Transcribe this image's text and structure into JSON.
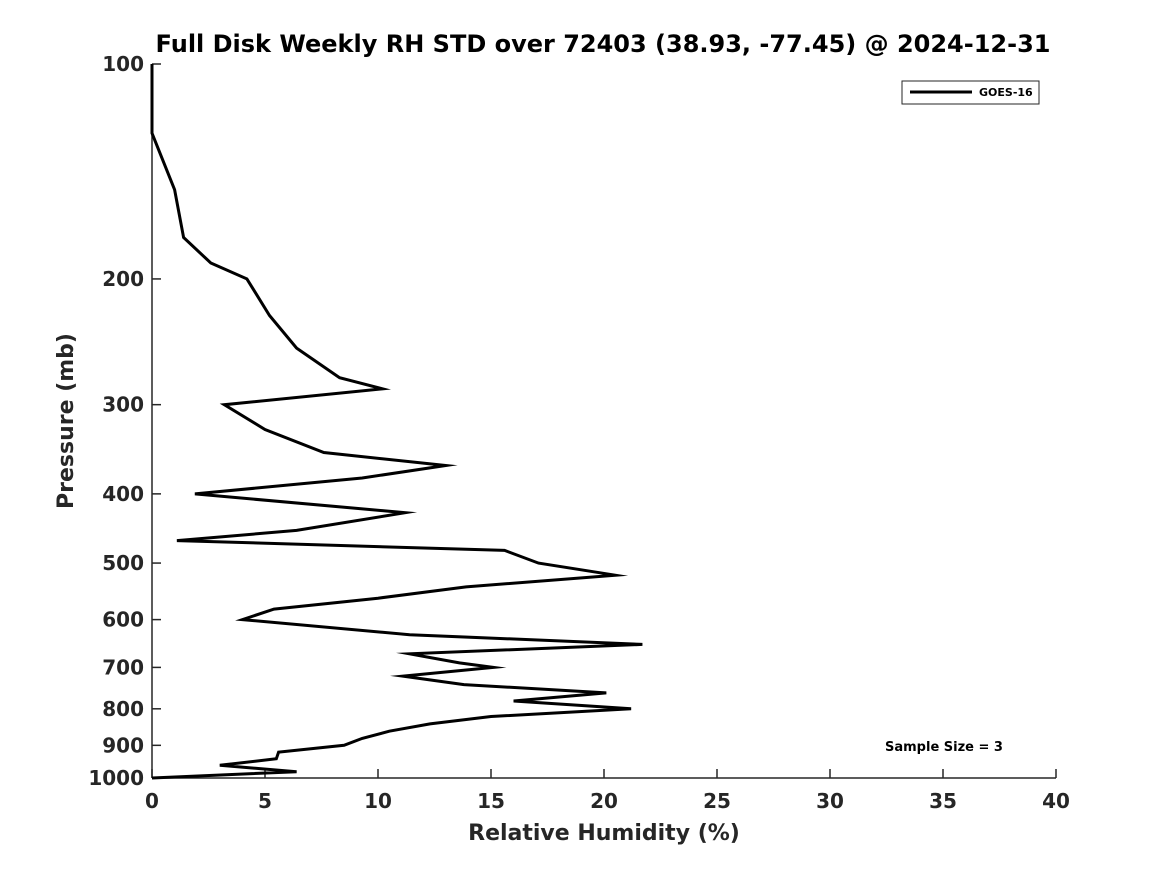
{
  "chart_data": {
    "type": "line",
    "title": "Full Disk Weekly RH STD over 72403 (38.93, -77.45) @ 2024-12-31",
    "xlabel": "Relative Humidity (%)",
    "ylabel": "Pressure (mb)",
    "xlim": [
      0,
      40
    ],
    "ylim": [
      100,
      1000
    ],
    "yscale": "log",
    "yreversed": true,
    "grid": false,
    "legend_position": "top-right",
    "x_ticks": [
      "0",
      "5",
      "10",
      "15",
      "20",
      "25",
      "30",
      "35",
      "40"
    ],
    "y_ticks": [
      "100",
      "200",
      "300",
      "400",
      "500",
      "600",
      "700",
      "800",
      "900",
      "1000"
    ],
    "annotation": "Sample Size = 3",
    "series": [
      {
        "name": "GOES-16",
        "color": "#000000",
        "points": [
          [
            0.0,
            100
          ],
          [
            0.0,
            125
          ],
          [
            1.0,
            150
          ],
          [
            1.4,
            175
          ],
          [
            2.6,
            190
          ],
          [
            4.2,
            200
          ],
          [
            5.2,
            225
          ],
          [
            6.4,
            250
          ],
          [
            8.3,
            275
          ],
          [
            10.2,
            285
          ],
          [
            3.2,
            300
          ],
          [
            5.0,
            325
          ],
          [
            7.6,
            350
          ],
          [
            13.0,
            365
          ],
          [
            9.3,
            380
          ],
          [
            1.9,
            400
          ],
          [
            11.2,
            425
          ],
          [
            6.4,
            450
          ],
          [
            1.1,
            465
          ],
          [
            15.6,
            480
          ],
          [
            17.1,
            500
          ],
          [
            20.5,
            520
          ],
          [
            13.9,
            540
          ],
          [
            10.0,
            560
          ],
          [
            5.4,
            580
          ],
          [
            4.0,
            600
          ],
          [
            11.4,
            630
          ],
          [
            21.7,
            650
          ],
          [
            11.4,
            670
          ],
          [
            13.6,
            690
          ],
          [
            15.1,
            700
          ],
          [
            11.1,
            720
          ],
          [
            13.8,
            740
          ],
          [
            20.1,
            760
          ],
          [
            16.0,
            780
          ],
          [
            21.2,
            800
          ],
          [
            15.0,
            820
          ],
          [
            12.3,
            840
          ],
          [
            10.5,
            860
          ],
          [
            9.3,
            880
          ],
          [
            8.5,
            900
          ],
          [
            5.6,
            920
          ],
          [
            5.5,
            940
          ],
          [
            3.0,
            960
          ],
          [
            6.4,
            980
          ],
          [
            0.0,
            1000
          ]
        ]
      }
    ]
  }
}
